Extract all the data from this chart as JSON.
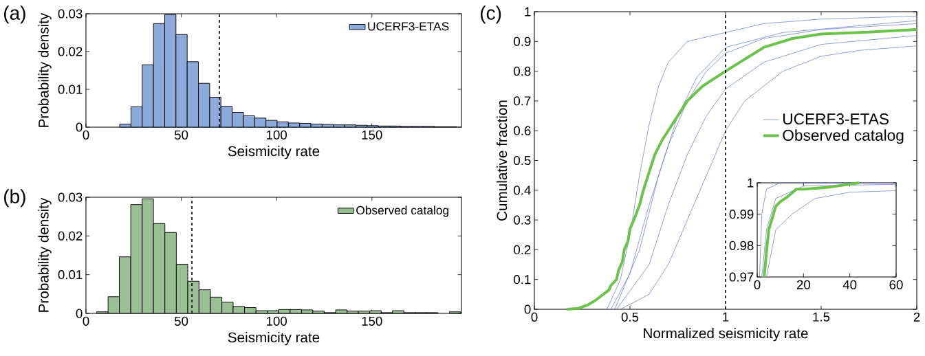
{
  "chart_data": [
    {
      "type": "histogram",
      "title": "(a)",
      "xlabel": "Seismicity rate",
      "ylabel": "Probability density",
      "xlim": [
        0,
        197
      ],
      "ylim": [
        0,
        0.03
      ],
      "xticks": [
        0,
        50,
        100,
        150
      ],
      "yticks": [
        0,
        0.01,
        0.02,
        0.03
      ],
      "legend": "top right",
      "bins": [
        17.7,
        23.6,
        29.5,
        35.4,
        41.3,
        47.2,
        53.1,
        59.0,
        64.9,
        70.8,
        76.7,
        82.6,
        88.5,
        94.4,
        100.3,
        106.2,
        112.1,
        118.0,
        123.9,
        129.8,
        135.7,
        141.6,
        147.5,
        153.4,
        159.3,
        165.2,
        171.1,
        177.0,
        182.9,
        188.8,
        194.7
      ],
      "series": [
        {
          "name": "UCERF3-ETAS",
          "color": "#8eaadb",
          "values": [
            0.0008,
            0.0054,
            0.0165,
            0.0274,
            0.0298,
            0.0245,
            0.0173,
            0.0116,
            0.0079,
            0.0055,
            0.0039,
            0.003,
            0.0024,
            0.0018,
            0.0014,
            0.0011,
            0.001,
            0.0008,
            0.0007,
            0.0006,
            0.0006,
            0.0005,
            0.0004,
            0.0003,
            0.0003,
            0.0002,
            0.0002,
            0.0002,
            0.0001,
            0.0001
          ]
        }
      ],
      "ref_lines": [
        {
          "axis": "x",
          "value": 70,
          "color": "#000000",
          "line_style": "dashed"
        }
      ]
    },
    {
      "type": "histogram",
      "title": "(b)",
      "xlabel": "Seismicity rate",
      "ylabel": "Probability density",
      "xlim": [
        0,
        197
      ],
      "ylim": [
        0,
        0.03
      ],
      "xticks": [
        0,
        50,
        100,
        150
      ],
      "yticks": [
        0,
        0.01,
        0.02,
        0.03
      ],
      "legend": "top right",
      "bins": [
        5.6,
        11.6,
        17.5,
        23.5,
        29.5,
        35.4,
        41.4,
        47.4,
        53.4,
        59.3,
        65.3,
        71.3,
        77.2,
        83.2,
        89.2,
        95.2,
        101.1,
        107.1,
        113.1,
        119.0,
        125.0,
        131.0,
        137.0,
        142.9,
        148.9,
        154.9,
        160.8,
        166.8,
        172.8,
        178.8,
        184.7,
        190.7,
        196.6
      ],
      "series": [
        {
          "name": "Observed catalog",
          "color": "#9bbf94",
          "values": [
            0.0004,
            0.0043,
            0.0146,
            0.0281,
            0.0296,
            0.0232,
            0.0209,
            0.0127,
            0.0083,
            0.0061,
            0.0042,
            0.0029,
            0.0018,
            0.0015,
            0.0007,
            0.0007,
            0.001,
            0.001,
            0.0009,
            0.0006,
            0.0002,
            0.0009,
            0.0006,
            0.0006,
            0.0007,
            0.0002,
            0.0007,
            0.0002,
            0.0002,
            0.0002,
            0,
            0.0004
          ]
        }
      ],
      "ref_lines": [
        {
          "axis": "x",
          "value": 55.6,
          "color": "#000000",
          "line_style": "dashed"
        }
      ]
    },
    {
      "type": "line",
      "title": "(c)",
      "xlabel": "Normalized seismicity rate",
      "ylabel": "Cumulative fraction",
      "xlim": [
        0,
        2
      ],
      "ylim": [
        0,
        1
      ],
      "xticks": [
        0,
        0.5,
        1,
        1.5,
        2
      ],
      "yticks": [
        0,
        0.1,
        0.2,
        0.3,
        0.4,
        0.5,
        0.6,
        0.7,
        0.8,
        0.9,
        1
      ],
      "legend": "right",
      "series": [
        {
          "name": "UCERF3-ETAS",
          "color": "#5a6cc4",
          "x": [
            0.4,
            0.5,
            0.6,
            0.7,
            0.8,
            0.9,
            1.0,
            1.2,
            1.5,
            2.0
          ],
          "values": [
            0,
            0.12,
            0.35,
            0.55,
            0.7,
            0.8,
            0.86,
            0.91,
            0.94,
            0.96
          ]
        },
        {
          "color": "#5a6cc4",
          "x": [
            0.38,
            0.45,
            0.5,
            0.55,
            0.6,
            0.65,
            0.7,
            0.8,
            1.0,
            1.2,
            1.5,
            2.0
          ],
          "values": [
            0,
            0.1,
            0.25,
            0.45,
            0.62,
            0.75,
            0.83,
            0.9,
            0.93,
            0.96,
            0.975,
            0.985
          ]
        },
        {
          "color": "#5a6cc4",
          "x": [
            0.42,
            0.55,
            0.65,
            0.75,
            0.85,
            1.0,
            1.3,
            2.0
          ],
          "values": [
            0,
            0.2,
            0.45,
            0.65,
            0.78,
            0.88,
            0.93,
            0.97
          ]
        },
        {
          "color": "#5a6cc4",
          "x": [
            0.43,
            0.6,
            0.7,
            0.8,
            0.9,
            1.0,
            1.2,
            1.5,
            2.0
          ],
          "values": [
            0,
            0.15,
            0.35,
            0.52,
            0.65,
            0.74,
            0.83,
            0.89,
            0.92
          ]
        },
        {
          "color": "#5a6cc4",
          "x": [
            0.45,
            0.6,
            0.7,
            0.8,
            0.9,
            1.0,
            1.1,
            1.3,
            1.5,
            1.7,
            2.0
          ],
          "values": [
            0,
            0.05,
            0.15,
            0.3,
            0.45,
            0.6,
            0.7,
            0.8,
            0.85,
            0.87,
            0.885
          ]
        },
        {
          "name": "Observed catalog",
          "color": "#6cc24a",
          "x": [
            0.17,
            0.23,
            0.28,
            0.32,
            0.36,
            0.39,
            0.4,
            0.43,
            0.44,
            0.46,
            0.47,
            0.49,
            0.5,
            0.52,
            0.55,
            0.57,
            0.6,
            0.63,
            0.67,
            0.72,
            0.76,
            0.8,
            0.88,
            1.0,
            1.1,
            1.2,
            1.35,
            1.5,
            1.7,
            1.85,
            2.0
          ],
          "values": [
            0,
            0.003,
            0.015,
            0.03,
            0.05,
            0.065,
            0.08,
            0.1,
            0.13,
            0.16,
            0.2,
            0.23,
            0.27,
            0.3,
            0.35,
            0.4,
            0.46,
            0.52,
            0.57,
            0.62,
            0.66,
            0.7,
            0.75,
            0.8,
            0.84,
            0.88,
            0.91,
            0.925,
            0.93,
            0.935,
            0.94
          ]
        }
      ],
      "ref_lines": [
        {
          "axis": "x",
          "value": 1,
          "color": "#000000",
          "line_style": "dashed"
        }
      ]
    },
    {
      "type": "line",
      "xlim": [
        0,
        60
      ],
      "ylim": [
        0.97,
        1
      ],
      "xticks": [
        0,
        20,
        40,
        60
      ],
      "yticks": [
        0.97,
        0.98,
        0.99,
        1
      ],
      "series": [
        {
          "color": "#5a6cc4",
          "x": [
            1,
            2,
            4,
            10,
            60
          ],
          "values": [
            0.97,
            0.99,
            0.998,
            1,
            1
          ]
        },
        {
          "color": "#5a6cc4",
          "x": [
            2,
            4,
            8,
            20,
            60
          ],
          "values": [
            0.97,
            0.985,
            0.995,
            0.999,
            0.9995
          ]
        },
        {
          "color": "#5a6cc4",
          "x": [
            4,
            8,
            15,
            25,
            40,
            60
          ],
          "values": [
            0.97,
            0.985,
            0.99,
            0.995,
            0.997,
            0.9975
          ]
        },
        {
          "color": "#6cc24a",
          "x": [
            3,
            4,
            5,
            7,
            8,
            10,
            13,
            17,
            20,
            30,
            44
          ],
          "values": [
            0.97,
            0.978,
            0.985,
            0.99,
            0.9925,
            0.994,
            0.9955,
            0.998,
            0.998,
            0.9985,
            1.0
          ]
        }
      ]
    }
  ]
}
